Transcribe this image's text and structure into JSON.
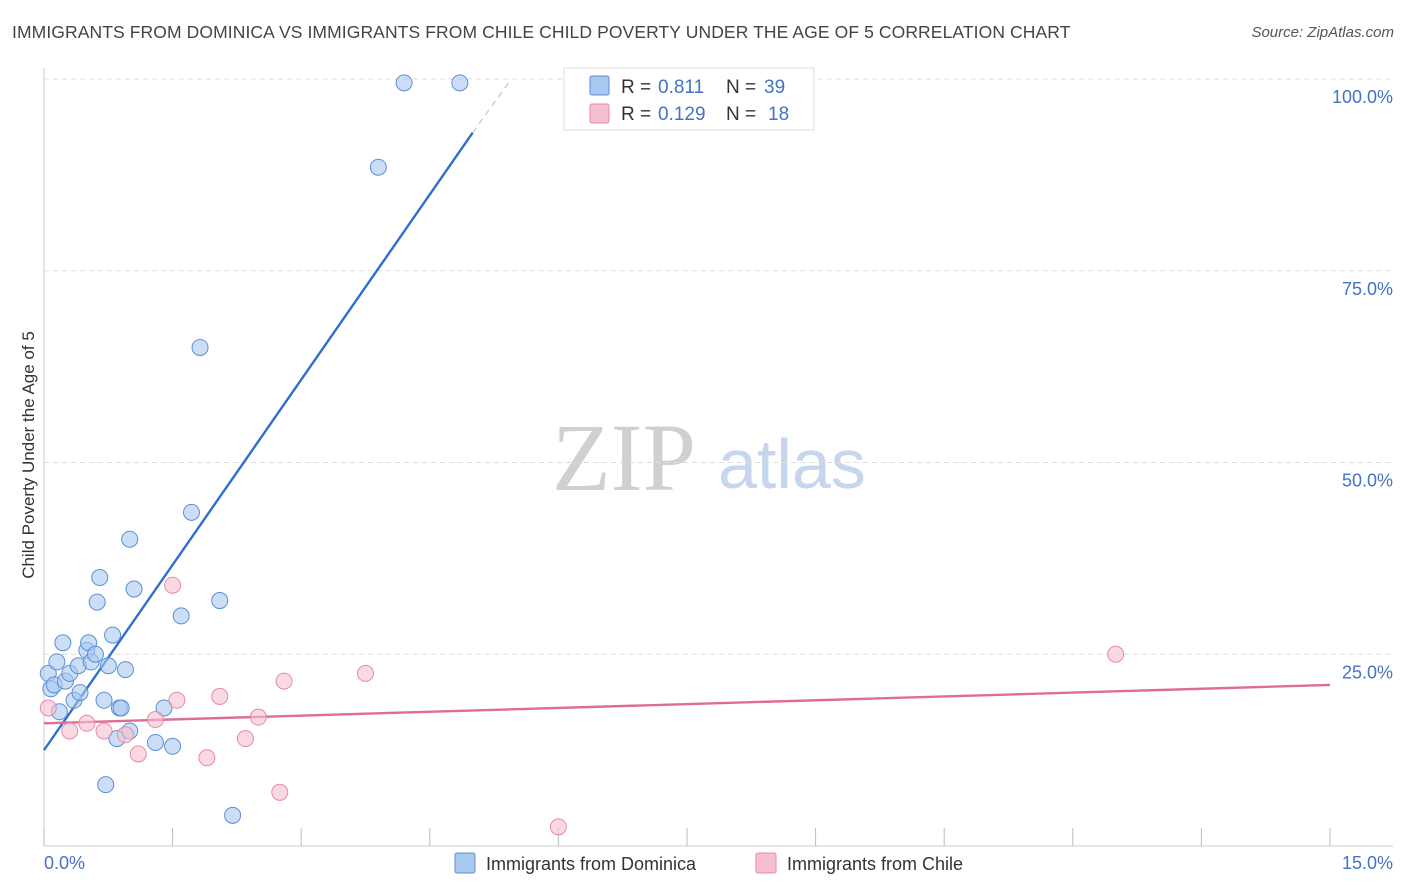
{
  "title": "IMMIGRANTS FROM DOMINICA VS IMMIGRANTS FROM CHILE CHILD POVERTY UNDER THE AGE OF 5 CORRELATION CHART",
  "source": "Source: ZipAtlas.com",
  "watermark": {
    "zip": "ZIP",
    "atlas": "atlas"
  },
  "legend": {
    "r_label": "R =",
    "n_label": "N =",
    "rows": [
      {
        "r": "0.811",
        "n": "39"
      },
      {
        "r": "0.129",
        "n": "18"
      }
    ]
  },
  "colors": {
    "dominica_fill": "#a9c8ef",
    "dominica_stroke": "#5b8fd6",
    "dominica_line": "#2f6fcc",
    "chile_fill": "#f6bfd0",
    "chile_stroke": "#e88aa8",
    "chile_line": "#e06b97",
    "tick": "#4472c4",
    "grid": "#dddddd"
  },
  "chart_data": {
    "type": "scatter",
    "title": "IMMIGRANTS FROM DOMINICA VS IMMIGRANTS FROM CHILE CHILD POVERTY UNDER THE AGE OF 5 CORRELATION CHART",
    "xlabel": "",
    "ylabel": "Child Poverty Under the Age of 5",
    "xlim": [
      0,
      15
    ],
    "ylim": [
      0,
      100
    ],
    "x_tick_labels": [
      "0.0%",
      "15.0%"
    ],
    "y_ticks": [
      25,
      50,
      75,
      100
    ],
    "y_tick_labels": [
      "25.0%",
      "50.0%",
      "75.0%",
      "100.0%"
    ],
    "grid": true,
    "legend_position": "top-center",
    "series": [
      {
        "name": "Immigrants from Dominica",
        "r": 0.811,
        "n": 39,
        "points": [
          [
            0.05,
            22.5
          ],
          [
            0.08,
            20.5
          ],
          [
            0.12,
            21.0
          ],
          [
            0.15,
            24.0
          ],
          [
            0.18,
            17.5
          ],
          [
            0.22,
            26.5
          ],
          [
            0.25,
            21.5
          ],
          [
            0.3,
            22.5
          ],
          [
            0.35,
            19.0
          ],
          [
            0.4,
            23.5
          ],
          [
            0.42,
            20.0
          ],
          [
            0.5,
            25.5
          ],
          [
            0.52,
            26.5
          ],
          [
            0.55,
            24.0
          ],
          [
            0.6,
            25.0
          ],
          [
            0.62,
            31.8
          ],
          [
            0.65,
            35.0
          ],
          [
            0.7,
            19.0
          ],
          [
            0.72,
            8.0
          ],
          [
            0.75,
            23.5
          ],
          [
            0.8,
            27.5
          ],
          [
            0.85,
            14.0
          ],
          [
            0.88,
            18.0
          ],
          [
            0.9,
            18.0
          ],
          [
            0.95,
            23.0
          ],
          [
            1.0,
            15.0
          ],
          [
            1.0,
            40.0
          ],
          [
            1.05,
            33.5
          ],
          [
            1.3,
            13.5
          ],
          [
            1.4,
            18.0
          ],
          [
            1.5,
            13.0
          ],
          [
            1.6,
            30.0
          ],
          [
            1.72,
            43.5
          ],
          [
            1.82,
            65.0
          ],
          [
            2.05,
            32.0
          ],
          [
            2.2,
            4.0
          ],
          [
            3.9,
            88.5
          ],
          [
            4.2,
            99.5
          ],
          [
            4.85,
            99.5
          ]
        ],
        "trend": {
          "x": [
            0,
            5.0
          ],
          "y": [
            12.5,
            93.0
          ],
          "dash_extension_to": [
            5.45,
            100.0
          ]
        }
      },
      {
        "name": "Immigrants from Chile",
        "r": 0.129,
        "n": 18,
        "points": [
          [
            0.05,
            18.0
          ],
          [
            0.3,
            15.0
          ],
          [
            0.5,
            16.0
          ],
          [
            0.7,
            15.0
          ],
          [
            0.95,
            14.5
          ],
          [
            1.1,
            12.0
          ],
          [
            1.3,
            16.5
          ],
          [
            1.5,
            34.0
          ],
          [
            1.55,
            19.0
          ],
          [
            1.9,
            11.5
          ],
          [
            2.05,
            19.5
          ],
          [
            2.35,
            14.0
          ],
          [
            2.5,
            16.8
          ],
          [
            2.75,
            7.0
          ],
          [
            2.8,
            21.5
          ],
          [
            3.75,
            22.5
          ],
          [
            6.0,
            2.5
          ],
          [
            12.5,
            25.0
          ]
        ],
        "trend": {
          "x": [
            0,
            15.0
          ],
          "y": [
            16.0,
            21.0
          ]
        }
      }
    ]
  }
}
